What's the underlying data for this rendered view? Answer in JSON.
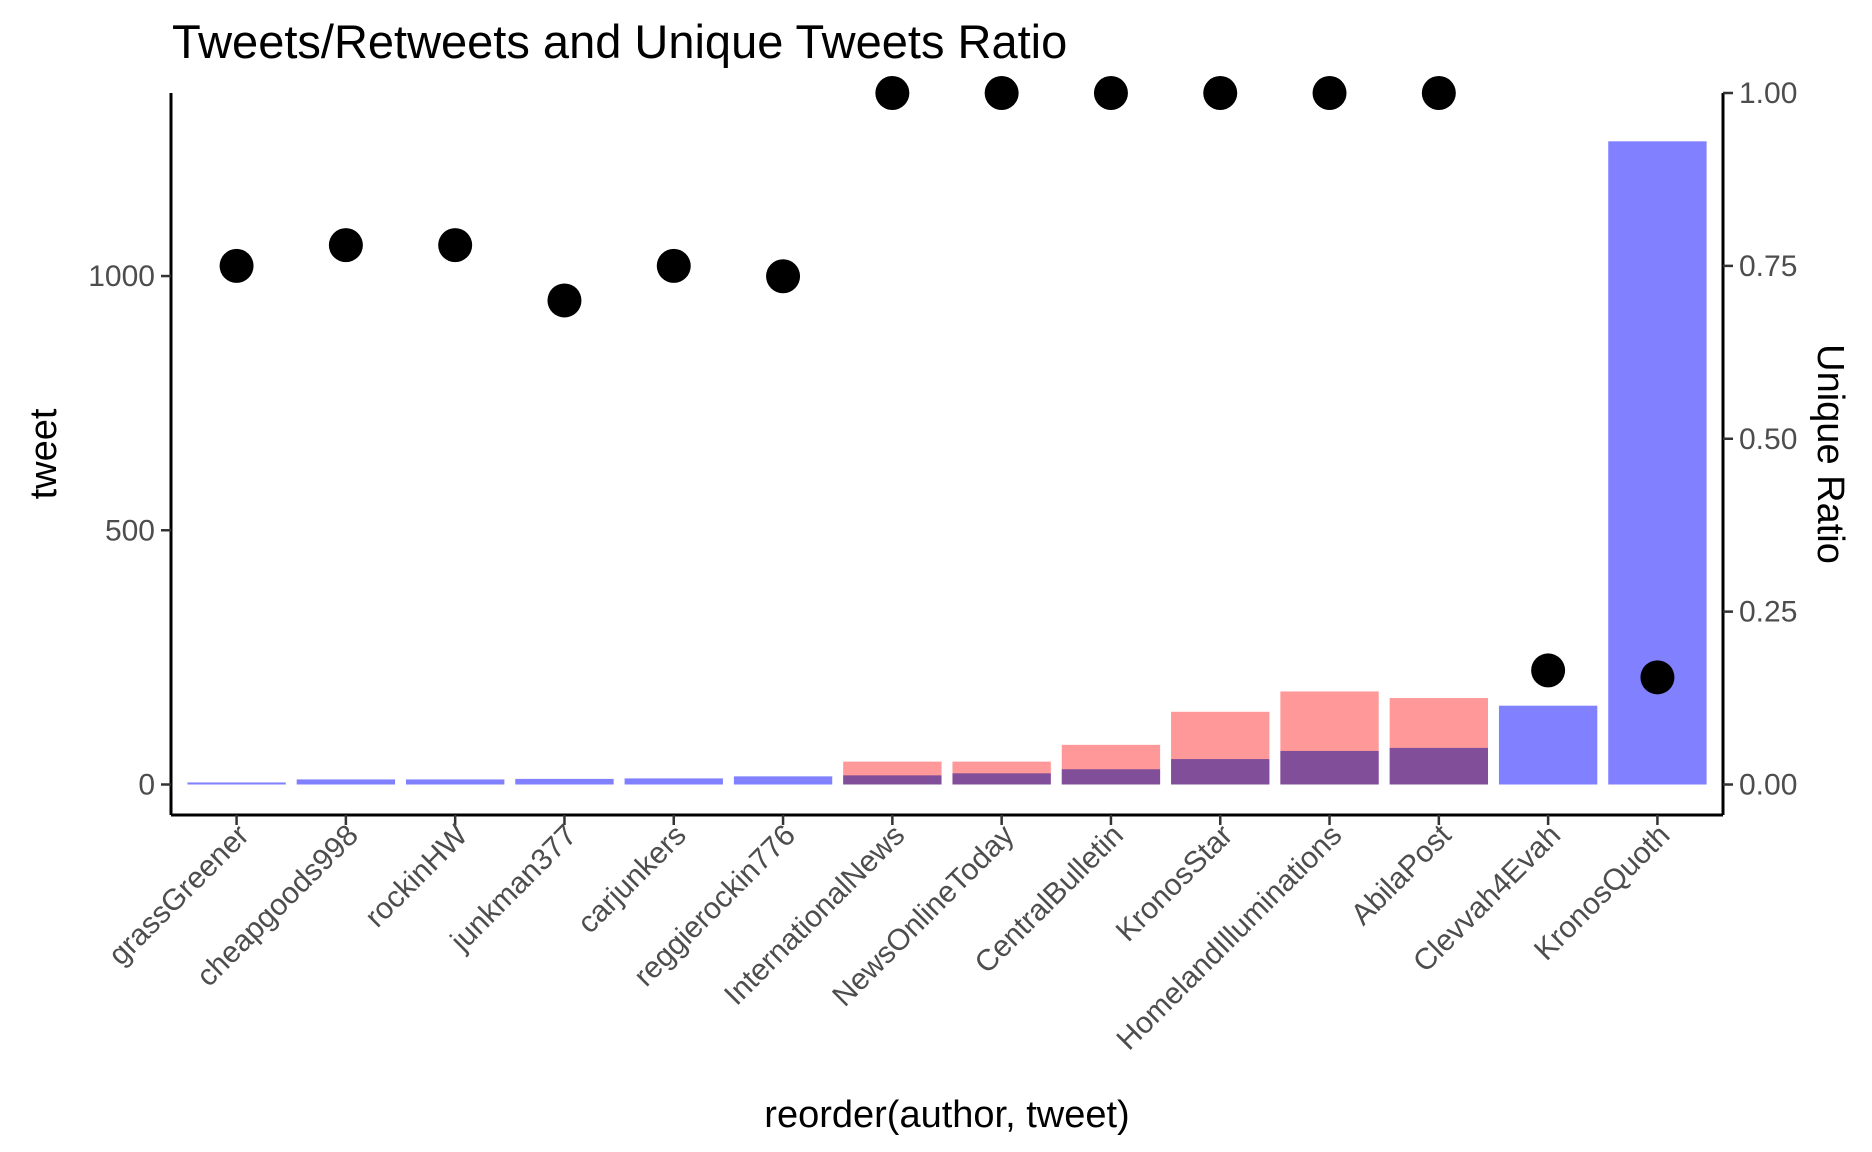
{
  "chart_data": {
    "type": "bar",
    "title": "Tweets/Retweets and Unique Tweets Ratio",
    "xlabel": "reorder(author, tweet)",
    "ylabel": "tweet",
    "y2label": "Unique Ratio",
    "ylim": [
      -60,
      1360
    ],
    "y2lim": [
      -0.0441,
      1.0
    ],
    "yticks": [
      "0",
      "500",
      "1000"
    ],
    "y2ticks": [
      "0.00",
      "0.25",
      "0.50",
      "0.75",
      "1.00"
    ],
    "categories": [
      "grassGreener",
      "cheapgoods998",
      "rockinHW",
      "junkman377",
      "carjunkers",
      "reggierockin776",
      "InternationalNews",
      "NewsOnlineToday",
      "CentralBulletin",
      "KronosStar",
      "HomelandIlluminations",
      "AbilaPost",
      "Clevvah4Evah",
      "KronosQuoth"
    ],
    "series": [
      {
        "role": "retweet",
        "color": "#ff9999",
        "values": [
          0,
          0,
          0,
          0,
          0,
          0,
          45,
          45,
          78,
          143,
          183,
          170,
          0,
          0
        ]
      },
      {
        "role": "tweet",
        "color": "#7f7fff",
        "values": [
          4,
          10,
          10,
          11,
          12,
          16,
          18,
          22,
          30,
          50,
          66,
          72,
          155,
          1265
        ]
      },
      {
        "role": "unique_ratio",
        "axis": "right",
        "color": "#000000",
        "values": [
          0.75,
          0.78,
          0.78,
          0.7,
          0.75,
          0.735,
          1.0,
          1.0,
          1.0,
          1.0,
          1.0,
          1.0,
          0.165,
          0.155
        ]
      }
    ],
    "grid": false,
    "legend": "none"
  }
}
